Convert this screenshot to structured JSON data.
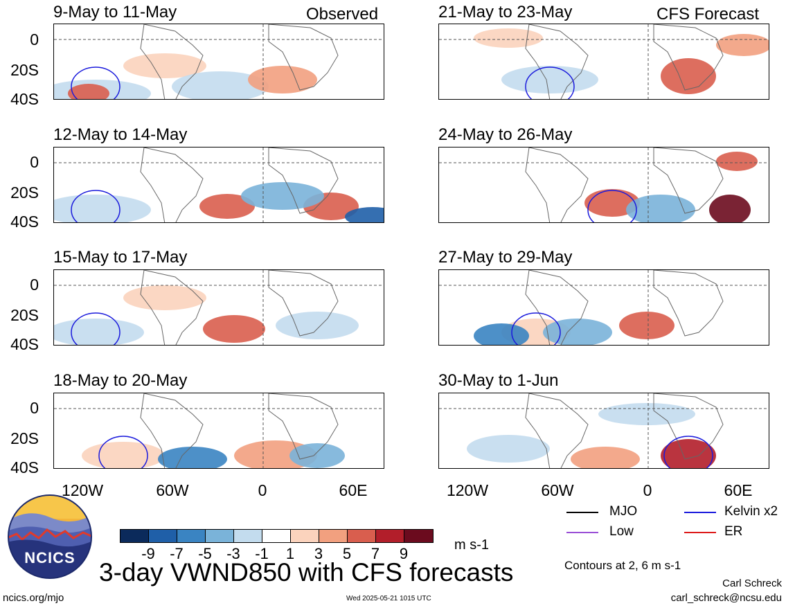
{
  "observed_label": "Observed",
  "forecast_label": "CFS Forecast",
  "panels": {
    "left": [
      {
        "title": "9-May to 11-May"
      },
      {
        "title": "12-May to 14-May"
      },
      {
        "title": "15-May to 17-May"
      },
      {
        "title": "18-May to 20-May"
      }
    ],
    "right": [
      {
        "title": "21-May to 23-May"
      },
      {
        "title": "24-May to 26-May"
      },
      {
        "title": "27-May to 29-May"
      },
      {
        "title": "30-May to 1-Jun"
      }
    ]
  },
  "lat_labels": [
    "0",
    "20S",
    "40S"
  ],
  "lon_labels": [
    "120W",
    "60W",
    "0",
    "60E"
  ],
  "colorbar": {
    "labels": [
      "-9",
      "-7",
      "-5",
      "-3",
      "-1",
      "1",
      "3",
      "5",
      "7",
      "9"
    ],
    "colors": [
      "#0b2a5b",
      "#1f5fa8",
      "#3a84c2",
      "#7ab3d9",
      "#c3dcee",
      "#ffffff",
      "#fbd3bd",
      "#f2a07f",
      "#d95e4e",
      "#b21e2a",
      "#6b0b1e"
    ],
    "units": "m s-1"
  },
  "legend": {
    "mjo": {
      "label": "MJO",
      "color": "#000000"
    },
    "kelvin": {
      "label": "Kelvin x2",
      "color": "#1a1adc"
    },
    "low": {
      "label": "Low",
      "color": "#9a4fd6"
    },
    "er": {
      "label": "ER",
      "color": "#dd1a1a"
    },
    "contours_note": "Contours at 2, 6 m s-1"
  },
  "logo_text": "NCICS",
  "main_title": "3-day VWND850 with CFS forecasts",
  "author": "Carl Schreck",
  "email": "carl_schreck@ncsu.edu",
  "site": "ncics.org/mjo",
  "timestamp": "Wed 2025-05-21 1015 UTC"
}
